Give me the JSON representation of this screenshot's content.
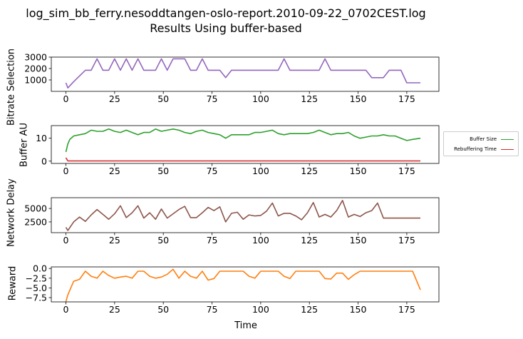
{
  "figure": {
    "title_line1": "log_sim_bb_ferry.nesoddtangen-oslo-report.2010-09-22_0702CEST.log",
    "title_line2": "Results Using buffer-based",
    "xlabel": "Time"
  },
  "legend": {
    "items": [
      {
        "label": "Buffer Size",
        "color": "#2ca02c"
      },
      {
        "label": "Rebuffering Time",
        "color": "#d62728"
      }
    ]
  },
  "chart_data": [
    {
      "type": "line",
      "ylabel": "Bitrate Selection",
      "xlim": [
        -7.5,
        191.5
      ],
      "ylim": [
        0,
        3000
      ],
      "xticks": [
        0,
        25,
        50,
        75,
        100,
        125,
        150,
        175
      ],
      "yticks": [
        1000,
        2000,
        3000
      ],
      "color": "#9467bd",
      "x": [
        0,
        1,
        4,
        7,
        10,
        13,
        16,
        19,
        22,
        25,
        28,
        31,
        34,
        37,
        40,
        43,
        46,
        49,
        52,
        55,
        58,
        61,
        64,
        67,
        70,
        73,
        76,
        79,
        82,
        85,
        88,
        91,
        94,
        97,
        100,
        103,
        106,
        109,
        112,
        115,
        118,
        121,
        124,
        127,
        130,
        133,
        136,
        139,
        142,
        145,
        148,
        151,
        154,
        157,
        160,
        163,
        166,
        169,
        172,
        175,
        178,
        182
      ],
      "y": [
        750,
        300,
        850,
        1350,
        1850,
        1850,
        2850,
        1850,
        1850,
        2850,
        1850,
        2850,
        1850,
        2850,
        1850,
        1850,
        1850,
        2850,
        1850,
        2850,
        2850,
        2850,
        1850,
        1850,
        2850,
        1850,
        1850,
        1850,
        1200,
        1850,
        1850,
        1850,
        1850,
        1850,
        1850,
        1850,
        1850,
        1850,
        2850,
        1850,
        1850,
        1850,
        1850,
        1850,
        1850,
        2850,
        1850,
        1850,
        1850,
        1850,
        1850,
        1850,
        1850,
        1200,
        1200,
        1200,
        1850,
        1850,
        1850,
        750,
        750,
        750
      ]
    },
    {
      "type": "line",
      "ylabel": "Buffer AU",
      "xlim": [
        -7.5,
        191.5
      ],
      "ylim": [
        -1,
        15.5
      ],
      "xticks": [
        0,
        25,
        50,
        75,
        100,
        125,
        150,
        175
      ],
      "yticks": [
        0,
        10
      ],
      "series": [
        {
          "name": "Buffer Size",
          "color": "#2ca02c",
          "x": [
            0,
            1,
            2,
            4,
            7,
            10,
            13,
            16,
            19,
            22,
            25,
            28,
            31,
            34,
            37,
            40,
            43,
            46,
            49,
            52,
            55,
            58,
            61,
            64,
            67,
            70,
            73,
            76,
            79,
            82,
            85,
            88,
            91,
            94,
            97,
            100,
            103,
            106,
            109,
            112,
            115,
            118,
            121,
            124,
            127,
            130,
            133,
            136,
            139,
            142,
            145,
            148,
            151,
            154,
            157,
            160,
            163,
            166,
            169,
            172,
            175,
            178,
            182
          ],
          "y": [
            4,
            7.5,
            9.5,
            11,
            11.5,
            12,
            13.5,
            13,
            13,
            14,
            13,
            12.5,
            13.5,
            12.5,
            11.5,
            12.5,
            12.5,
            14,
            13,
            13.5,
            14,
            13.5,
            12.5,
            12,
            13,
            13.5,
            12.5,
            12,
            11.5,
            10,
            11.5,
            11.5,
            11.5,
            11.5,
            12.5,
            12.5,
            13,
            13.5,
            12,
            11.5,
            12,
            12,
            12,
            12,
            12.5,
            13.5,
            12.5,
            11.5,
            12,
            12,
            12.5,
            11,
            10,
            10.5,
            11,
            11,
            11.5,
            11,
            11,
            10,
            9,
            9.5,
            10
          ]
        },
        {
          "name": "Rebuffering Time",
          "color": "#d62728",
          "x": [
            0,
            1,
            2,
            182
          ],
          "y": [
            1.5,
            0.1,
            0.1,
            0.1
          ]
        }
      ]
    },
    {
      "type": "line",
      "ylabel": "Network Delay",
      "xlim": [
        -7.5,
        191.5
      ],
      "ylim": [
        500,
        7000
      ],
      "xticks": [
        0,
        25,
        50,
        75,
        100,
        125,
        150,
        175
      ],
      "yticks": [
        2500,
        5000
      ],
      "color": "#8c564b",
      "x": [
        0,
        1,
        4,
        7,
        10,
        13,
        16,
        19,
        22,
        25,
        28,
        31,
        34,
        37,
        40,
        43,
        46,
        49,
        52,
        55,
        58,
        61,
        64,
        67,
        70,
        73,
        76,
        79,
        82,
        85,
        88,
        91,
        94,
        97,
        100,
        103,
        106,
        109,
        112,
        115,
        118,
        121,
        124,
        127,
        130,
        133,
        136,
        139,
        142,
        145,
        148,
        151,
        154,
        157,
        160,
        163,
        166,
        169,
        172,
        175,
        178,
        182
      ],
      "y": [
        1500,
        900,
        2500,
        3400,
        2600,
        3800,
        4800,
        3900,
        3000,
        4000,
        5500,
        3300,
        4200,
        5500,
        3200,
        4200,
        3000,
        4900,
        3200,
        4000,
        4800,
        5400,
        3300,
        3300,
        4200,
        5200,
        4600,
        5300,
        2500,
        4100,
        4300,
        3000,
        3800,
        3600,
        3700,
        4500,
        6000,
        3600,
        4100,
        4100,
        3600,
        2900,
        4200,
        6100,
        3400,
        3900,
        3400,
        4600,
        6500,
        3400,
        3900,
        3500,
        4200,
        4600,
        6000,
        3200,
        3200,
        3200,
        3200,
        3200,
        3200,
        3200
      ]
    },
    {
      "type": "line",
      "ylabel": "Reward",
      "xlim": [
        -7.5,
        191.5
      ],
      "ylim": [
        -8.6,
        0.4
      ],
      "xticks": [
        0,
        25,
        50,
        75,
        100,
        125,
        150,
        175
      ],
      "xtick_labels": [
        "0",
        "25",
        "50",
        "75",
        "100",
        "125",
        "150",
        "175"
      ],
      "yticks": [
        0.0,
        -2.5,
        -5.0,
        -7.5
      ],
      "ytick_labels": [
        "0.0",
        "−2.5",
        "−5.0",
        "−7.5"
      ],
      "color": "#ff7f0e",
      "x": [
        0,
        1,
        4,
        7,
        10,
        13,
        16,
        19,
        22,
        25,
        28,
        31,
        34,
        37,
        40,
        43,
        46,
        49,
        52,
        55,
        58,
        61,
        64,
        67,
        70,
        73,
        76,
        79,
        82,
        85,
        88,
        91,
        94,
        97,
        100,
        103,
        106,
        109,
        112,
        115,
        118,
        121,
        124,
        127,
        130,
        133,
        136,
        139,
        142,
        145,
        148,
        151,
        154,
        157,
        160,
        163,
        166,
        169,
        172,
        175,
        178,
        182
      ],
      "y": [
        -8.5,
        -6.8,
        -3.3,
        -2.8,
        -0.7,
        -2.0,
        -2.5,
        -0.7,
        -1.8,
        -2.5,
        -2.2,
        -2.0,
        -2.5,
        -0.7,
        -0.7,
        -2.0,
        -2.5,
        -2.2,
        -1.5,
        -0.2,
        -2.5,
        -0.7,
        -2.0,
        -2.5,
        -0.7,
        -3.0,
        -2.6,
        -0.7,
        -0.7,
        -0.7,
        -0.7,
        -0.7,
        -2.0,
        -2.5,
        -0.7,
        -0.7,
        -0.7,
        -0.7,
        -2.0,
        -2.6,
        -0.7,
        -0.7,
        -0.7,
        -0.7,
        -0.7,
        -2.6,
        -2.7,
        -1.2,
        -1.2,
        -2.8,
        -1.6,
        -0.7,
        -0.7,
        -0.7,
        -0.7,
        -0.7,
        -0.7,
        -0.7,
        -0.7,
        -0.7,
        -0.7,
        -5.5
      ]
    }
  ]
}
